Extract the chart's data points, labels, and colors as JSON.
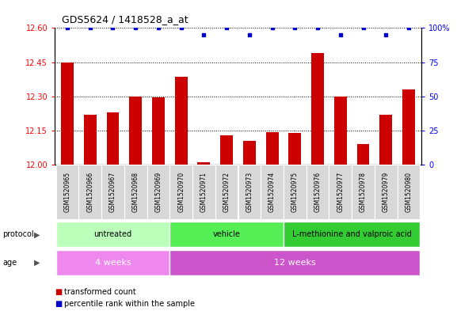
{
  "title": "GDS5624 / 1418528_a_at",
  "samples": [
    "GSM1520965",
    "GSM1520966",
    "GSM1520967",
    "GSM1520968",
    "GSM1520969",
    "GSM1520970",
    "GSM1520971",
    "GSM1520972",
    "GSM1520973",
    "GSM1520974",
    "GSM1520975",
    "GSM1520976",
    "GSM1520977",
    "GSM1520978",
    "GSM1520979",
    "GSM1520980"
  ],
  "bar_values": [
    12.45,
    12.22,
    12.23,
    12.3,
    12.295,
    12.385,
    12.01,
    12.13,
    12.105,
    12.145,
    12.14,
    12.49,
    12.3,
    12.09,
    12.22,
    12.33
  ],
  "percentile_values": [
    100,
    100,
    100,
    100,
    100,
    100,
    95,
    100,
    95,
    100,
    100,
    100,
    95,
    100,
    95,
    100
  ],
  "ylim_left": [
    12.0,
    12.6
  ],
  "ylim_right": [
    0,
    100
  ],
  "yticks_left": [
    12.0,
    12.15,
    12.3,
    12.45,
    12.6
  ],
  "yticks_right": [
    0,
    25,
    50,
    75,
    100
  ],
  "bar_color": "#cc0000",
  "percentile_color": "#0000cc",
  "protocol_groups": [
    {
      "label": "untreated",
      "start": 0,
      "end": 4,
      "color": "#bbffbb"
    },
    {
      "label": "vehicle",
      "start": 5,
      "end": 9,
      "color": "#55ee55"
    },
    {
      "label": "L-methionine and valproic acid",
      "start": 10,
      "end": 15,
      "color": "#33cc33"
    }
  ],
  "age_groups": [
    {
      "label": "4 weeks",
      "start": 0,
      "end": 4,
      "color": "#ee88ee"
    },
    {
      "label": "12 weeks",
      "start": 5,
      "end": 15,
      "color": "#cc55cc"
    }
  ],
  "legend_items": [
    {
      "label": "transformed count",
      "color": "#cc0000"
    },
    {
      "label": "percentile rank within the sample",
      "color": "#0000cc"
    }
  ],
  "background_color": "#ffffff"
}
